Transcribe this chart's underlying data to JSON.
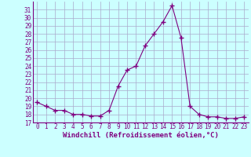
{
  "xlabel": "Windchill (Refroidissement éolien,°C)",
  "x": [
    0,
    1,
    2,
    3,
    4,
    5,
    6,
    7,
    8,
    9,
    10,
    11,
    12,
    13,
    14,
    15,
    16,
    17,
    18,
    19,
    20,
    21,
    22,
    23
  ],
  "y": [
    19.5,
    19.0,
    18.5,
    18.5,
    18.0,
    18.0,
    17.8,
    17.8,
    18.5,
    21.5,
    23.5,
    24.0,
    26.5,
    28.0,
    29.5,
    31.5,
    27.5,
    19.0,
    18.0,
    17.7,
    17.7,
    17.5,
    17.5,
    17.7
  ],
  "line_color": "#800080",
  "marker": "+",
  "marker_size": 4,
  "ylim": [
    17,
    32
  ],
  "xlim": [
    -0.5,
    23.5
  ],
  "yticks": [
    17,
    18,
    19,
    20,
    21,
    22,
    23,
    24,
    25,
    26,
    27,
    28,
    29,
    30,
    31
  ],
  "xticks": [
    0,
    1,
    2,
    3,
    4,
    5,
    6,
    7,
    8,
    9,
    10,
    11,
    12,
    13,
    14,
    15,
    16,
    17,
    18,
    19,
    20,
    21,
    22,
    23
  ],
  "bg_color": "#ccffff",
  "grid_color": "#aaaacc",
  "tick_color": "#800080",
  "label_color": "#800080",
  "xlabel_fontsize": 6.5,
  "tick_fontsize": 5.5
}
